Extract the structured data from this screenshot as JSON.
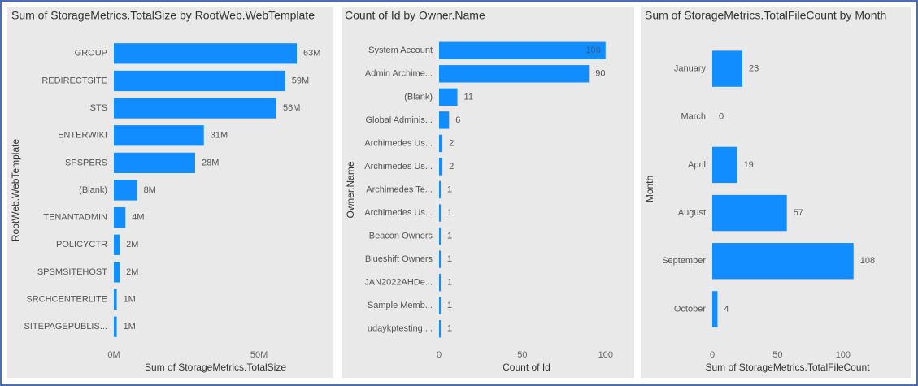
{
  "chart_data": [
    {
      "type": "bar",
      "orientation": "horizontal",
      "title": "Sum of StorageMetrics.TotalSize by RootWeb.WebTemplate",
      "x_label": "Sum of StorageMetrics.TotalSize",
      "y_label": "RootWeb.WebTemplate",
      "categories": [
        "GROUP",
        "REDIRECTSITE",
        "STS",
        "ENTERWIKI",
        "SPSPERS",
        "(Blank)",
        "TENANTADMIN",
        "POLICYCTR",
        "SPSMSITEHOST",
        "SRCHCENTERLITE",
        "SITEPAGEPUBLIS..."
      ],
      "values": [
        63000000,
        59000000,
        56000000,
        31000000,
        28000000,
        8000000,
        4000000,
        2000000,
        2000000,
        1000000,
        1000000
      ],
      "value_labels": [
        "63M",
        "59M",
        "56M",
        "31M",
        "28M",
        "8M",
        "4M",
        "2M",
        "2M",
        "1M",
        "1M"
      ],
      "color": "#118dff",
      "xlim": [
        0,
        70000000
      ],
      "xticks": [
        {
          "value": 0,
          "label": "0M"
        },
        {
          "value": 50000000,
          "label": "50M"
        }
      ]
    },
    {
      "type": "bar",
      "orientation": "horizontal",
      "title": "Count of Id by Owner.Name",
      "x_label": "Count of Id",
      "y_label": "Owner.Name",
      "categories": [
        "System Account",
        "Admin Archime...",
        "(Blank)",
        "Global Adminis...",
        "Archimedes Us...",
        "Archimedes Us...",
        "Archimedes Te...",
        "Archimedes Us...",
        "Beacon Owners",
        "Blueshift Owners",
        "JAN2022AHDe...",
        "Sample Memb...",
        "udaykptesting ..."
      ],
      "values": [
        100,
        90,
        11,
        6,
        2,
        2,
        1,
        1,
        1,
        1,
        1,
        1,
        1
      ],
      "color": "#118dff",
      "xlim": [
        0,
        105
      ],
      "xticks": [
        0,
        50,
        100
      ]
    },
    {
      "type": "bar",
      "orientation": "horizontal",
      "title": "Sum of StorageMetrics.TotalFileCount by Month",
      "x_label": "Sum of StorageMetrics.TotalFileCount",
      "y_label": "Month",
      "categories": [
        "January",
        "March",
        "April",
        "August",
        "September",
        "October"
      ],
      "values": [
        23,
        0,
        19,
        57,
        108,
        4
      ],
      "color": "#118dff",
      "xlim": [
        0,
        115
      ],
      "xticks": [
        0,
        50,
        100
      ]
    }
  ]
}
